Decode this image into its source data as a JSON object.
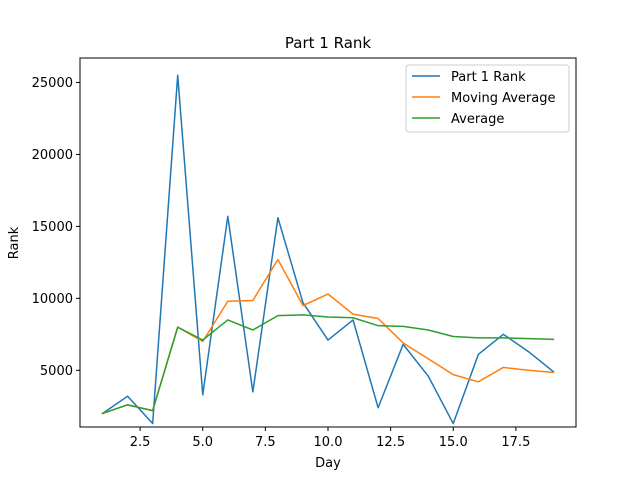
{
  "chart_data": {
    "type": "line",
    "title": "Part 1 Rank",
    "xlabel": "Day",
    "ylabel": "Rank",
    "xlim": [
      0.1,
      19.9
    ],
    "ylim": [
      1060,
      26700
    ],
    "xticks": [
      2.5,
      5.0,
      7.5,
      10.0,
      12.5,
      15.0,
      17.5
    ],
    "xtick_labels": [
      "2.5",
      "5.0",
      "7.5",
      "10.0",
      "12.5",
      "15.0",
      "17.5"
    ],
    "yticks": [
      5000,
      10000,
      15000,
      20000,
      25000
    ],
    "ytick_labels": [
      "5000",
      "10000",
      "15000",
      "20000",
      "25000"
    ],
    "grid": false,
    "legend_position": "top-right",
    "x": [
      1,
      2,
      3,
      4,
      5,
      6,
      7,
      8,
      9,
      10,
      11,
      12,
      13,
      14,
      15,
      16,
      17,
      18,
      19
    ],
    "series": [
      {
        "name": "Part 1 Rank",
        "color": "#1f77b4",
        "values": [
          2000,
          3200,
          1300,
          25500,
          3300,
          15700,
          3500,
          15600,
          9700,
          7100,
          8500,
          2400,
          6800,
          4600,
          1300,
          6100,
          7500,
          6300,
          4900
        ]
      },
      {
        "name": "Moving Average",
        "color": "#ff7f0e",
        "values": [
          2000,
          2600,
          2200,
          8000,
          7000,
          9800,
          9850,
          12700,
          9500,
          10300,
          8900,
          8600,
          6900,
          5800,
          4700,
          4200,
          5200,
          5000,
          4850
        ]
      },
      {
        "name": "Average",
        "color": "#2ca02c",
        "values": [
          2000,
          2600,
          2200,
          8000,
          7100,
          8500,
          7800,
          8800,
          8850,
          8700,
          8650,
          8100,
          8050,
          7800,
          7350,
          7250,
          7250,
          7200,
          7150
        ]
      }
    ]
  }
}
